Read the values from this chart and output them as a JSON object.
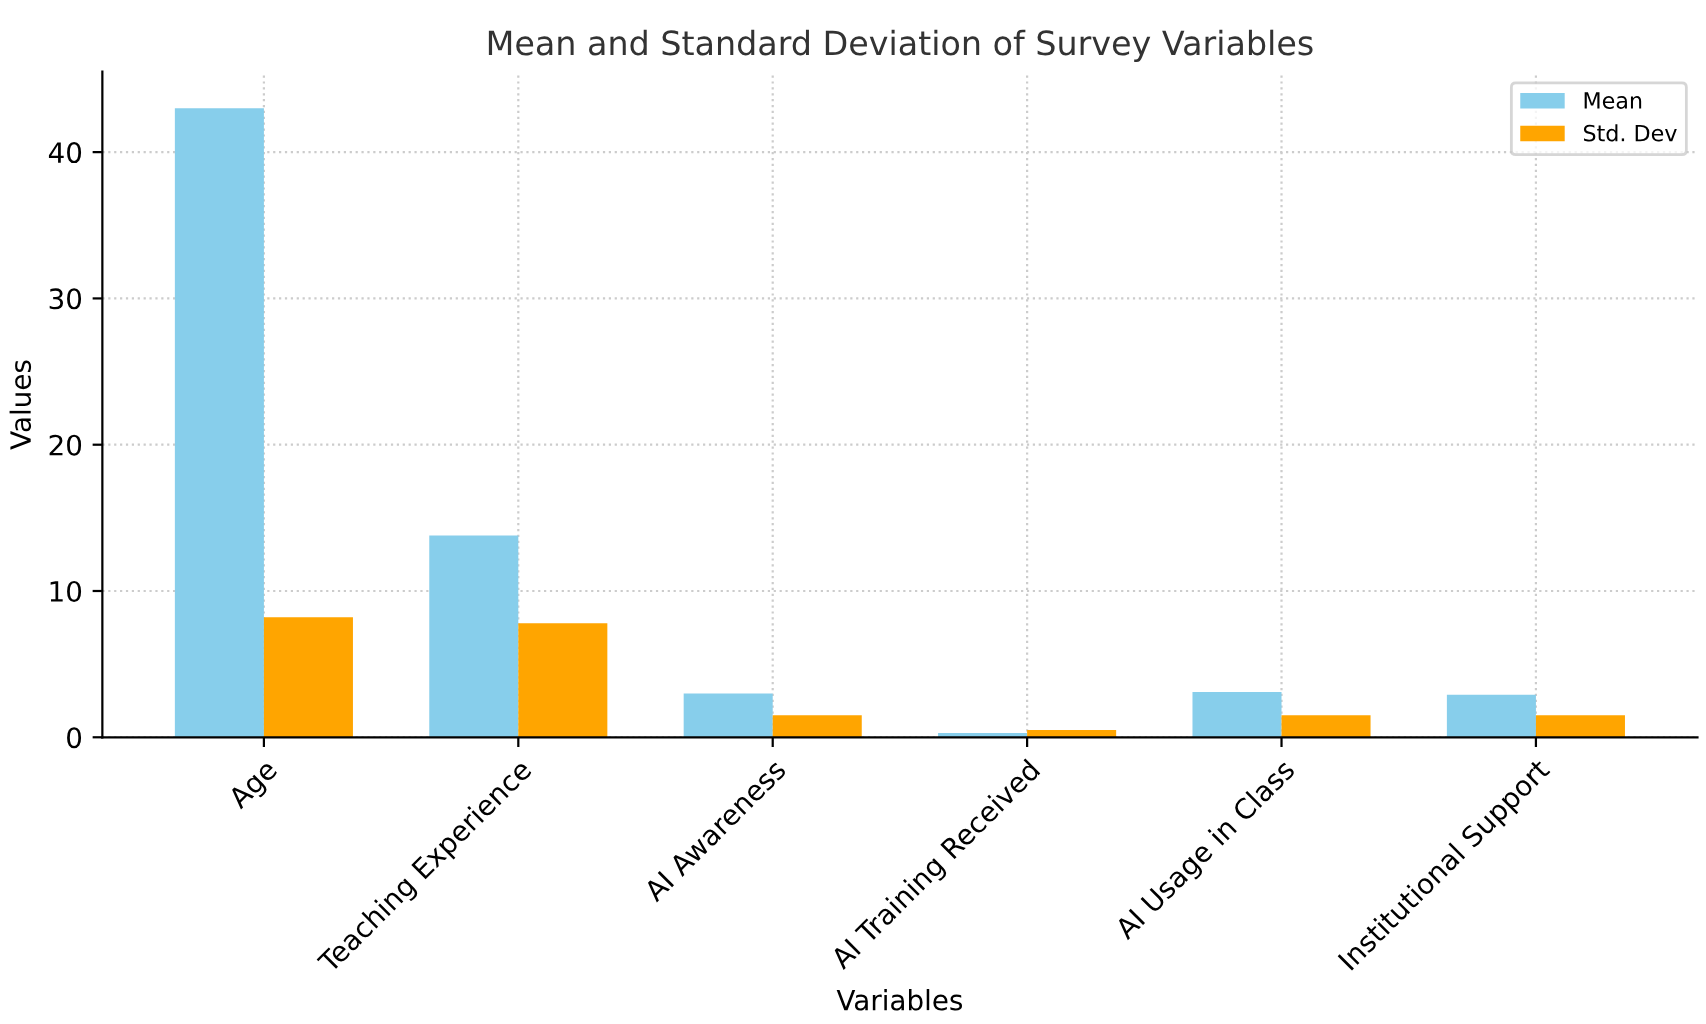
{
  "chart_data": {
    "type": "bar",
    "title": "Mean and Standard Deviation of Survey Variables",
    "xlabel": "Variables",
    "ylabel": "Values",
    "categories": [
      "Age",
      "Teaching Experience",
      "AI Awareness",
      "AI Training Received",
      "AI Usage in Class",
      "Institutional Support"
    ],
    "series": [
      {
        "name": "Mean",
        "color": "#87ceeb",
        "values": [
          43,
          13.8,
          3.0,
          0.3,
          3.1,
          2.9
        ]
      },
      {
        "name": "Std. Dev",
        "color": "#ffa500",
        "values": [
          8.2,
          7.8,
          1.5,
          0.5,
          1.5,
          1.5
        ]
      }
    ],
    "ylim": [
      0,
      45.5
    ],
    "yticks": [
      0,
      10,
      20,
      30,
      40
    ],
    "grid": true,
    "legend": "top right"
  }
}
